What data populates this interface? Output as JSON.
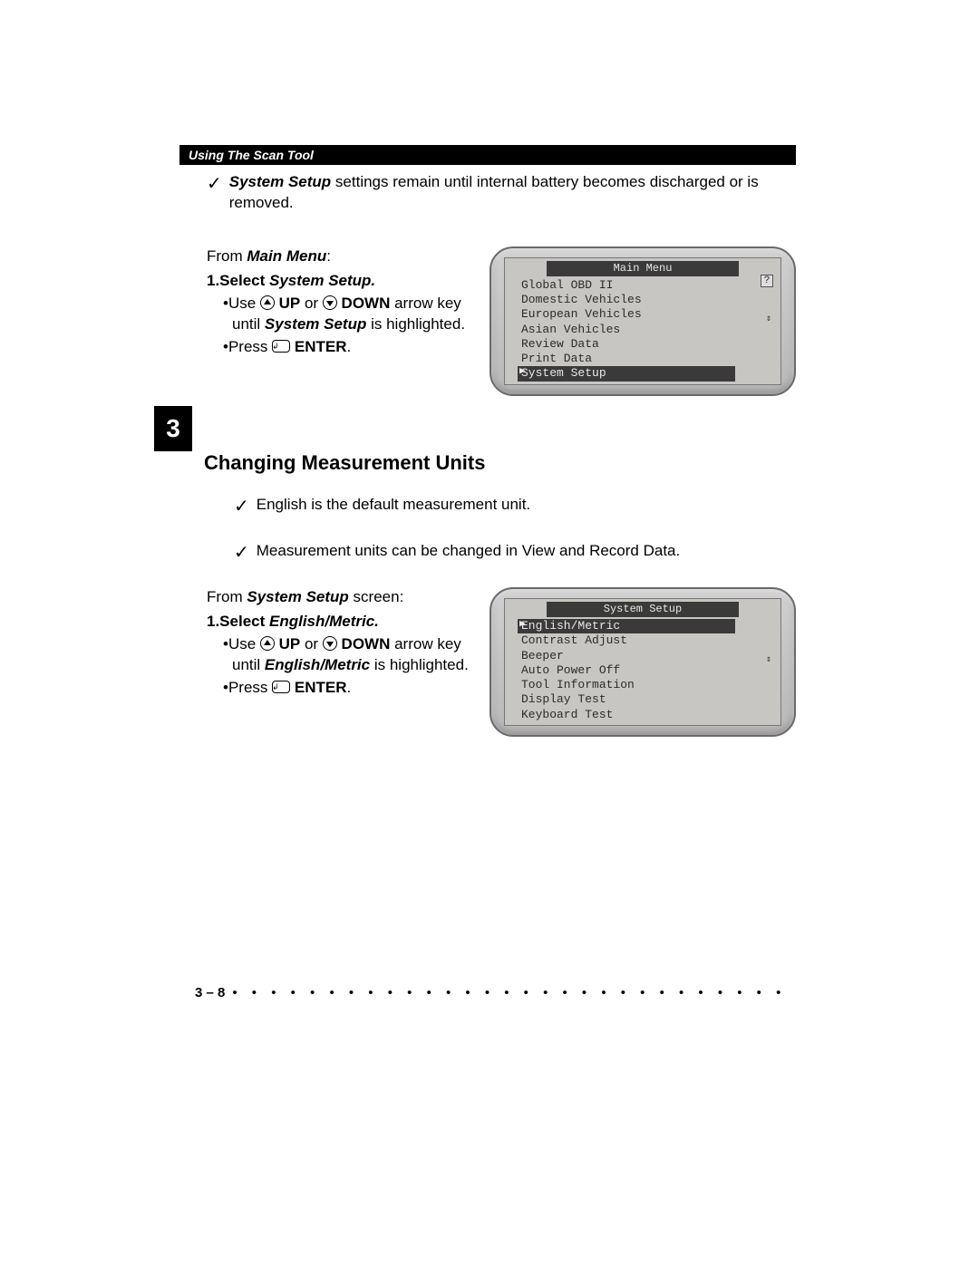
{
  "header": {
    "title": "Using The Scan Tool"
  },
  "chapter": {
    "number": "3"
  },
  "intro_check": {
    "prefix": "System Setup",
    "rest": " settings remain until internal battery becomes discharged or is removed."
  },
  "main_menu_block": {
    "from_prefix": "From ",
    "from_bold": "Main Menu",
    "from_suffix": ":",
    "step_label": "1.Select ",
    "step_target": "System Setup.",
    "use_prefix": "•Use ",
    "up_label": " UP",
    "or_text": " or ",
    "down_label": " DOWN",
    "arrow_text": " arrow key until ",
    "highlight_target": "System Setup",
    "highlight_suffix": " is highlighted.",
    "press_prefix": "•Press ",
    "enter_label": " ENTER",
    "press_suffix": "."
  },
  "device1": {
    "title": "Main Menu",
    "items": [
      "Global OBD II",
      "Domestic Vehicles",
      "European Vehicles",
      "Asian Vehicles",
      "Review Data",
      "Print Data",
      "System Setup"
    ],
    "highlighted_index": 6,
    "pointer_index": 6,
    "show_help": true
  },
  "section_heading": "Changing Measurement Units",
  "check1": "English is the default measurement unit.",
  "check2": "Measurement units can be changed in View and Record Data.",
  "system_setup_block": {
    "from_prefix": "From ",
    "from_bold": "System Setup",
    "from_suffix": " screen:",
    "step_label": "1.Select ",
    "step_target": "English/Metric.",
    "use_prefix": "•Use ",
    "up_label": " UP",
    "or_text": " or ",
    "down_label": " DOWN",
    "arrow_text": " arrow key until ",
    "highlight_target": "English/Metric",
    "highlight_suffix": " is highlighted.",
    "press_prefix": "•Press ",
    "enter_label": " ENTER",
    "press_suffix": "."
  },
  "device2": {
    "title": "System Setup",
    "items": [
      "English/Metric",
      "Contrast Adjust",
      "Beeper",
      "Auto Power Off",
      "Tool Information",
      "Display Test",
      "Keyboard Test"
    ],
    "highlighted_index": 0,
    "pointer_index": 0,
    "show_help": false
  },
  "footer": {
    "page": "3 – 8",
    "dots": "• • • • • • • • • • • • • • • • • • • • • • • • • • • • • • • • • • • • • • • • • • • • • • • • • • • • • •"
  },
  "colors": {
    "page_bg": "#ffffff",
    "text": "#000000",
    "header_bg": "#000000",
    "header_fg": "#ffffff",
    "device_frame": "#c4c4c4",
    "lcd_bg": "#c8c6c2",
    "lcd_hl_bg": "#3a3a3a",
    "lcd_hl_fg": "#e8e8e8"
  }
}
